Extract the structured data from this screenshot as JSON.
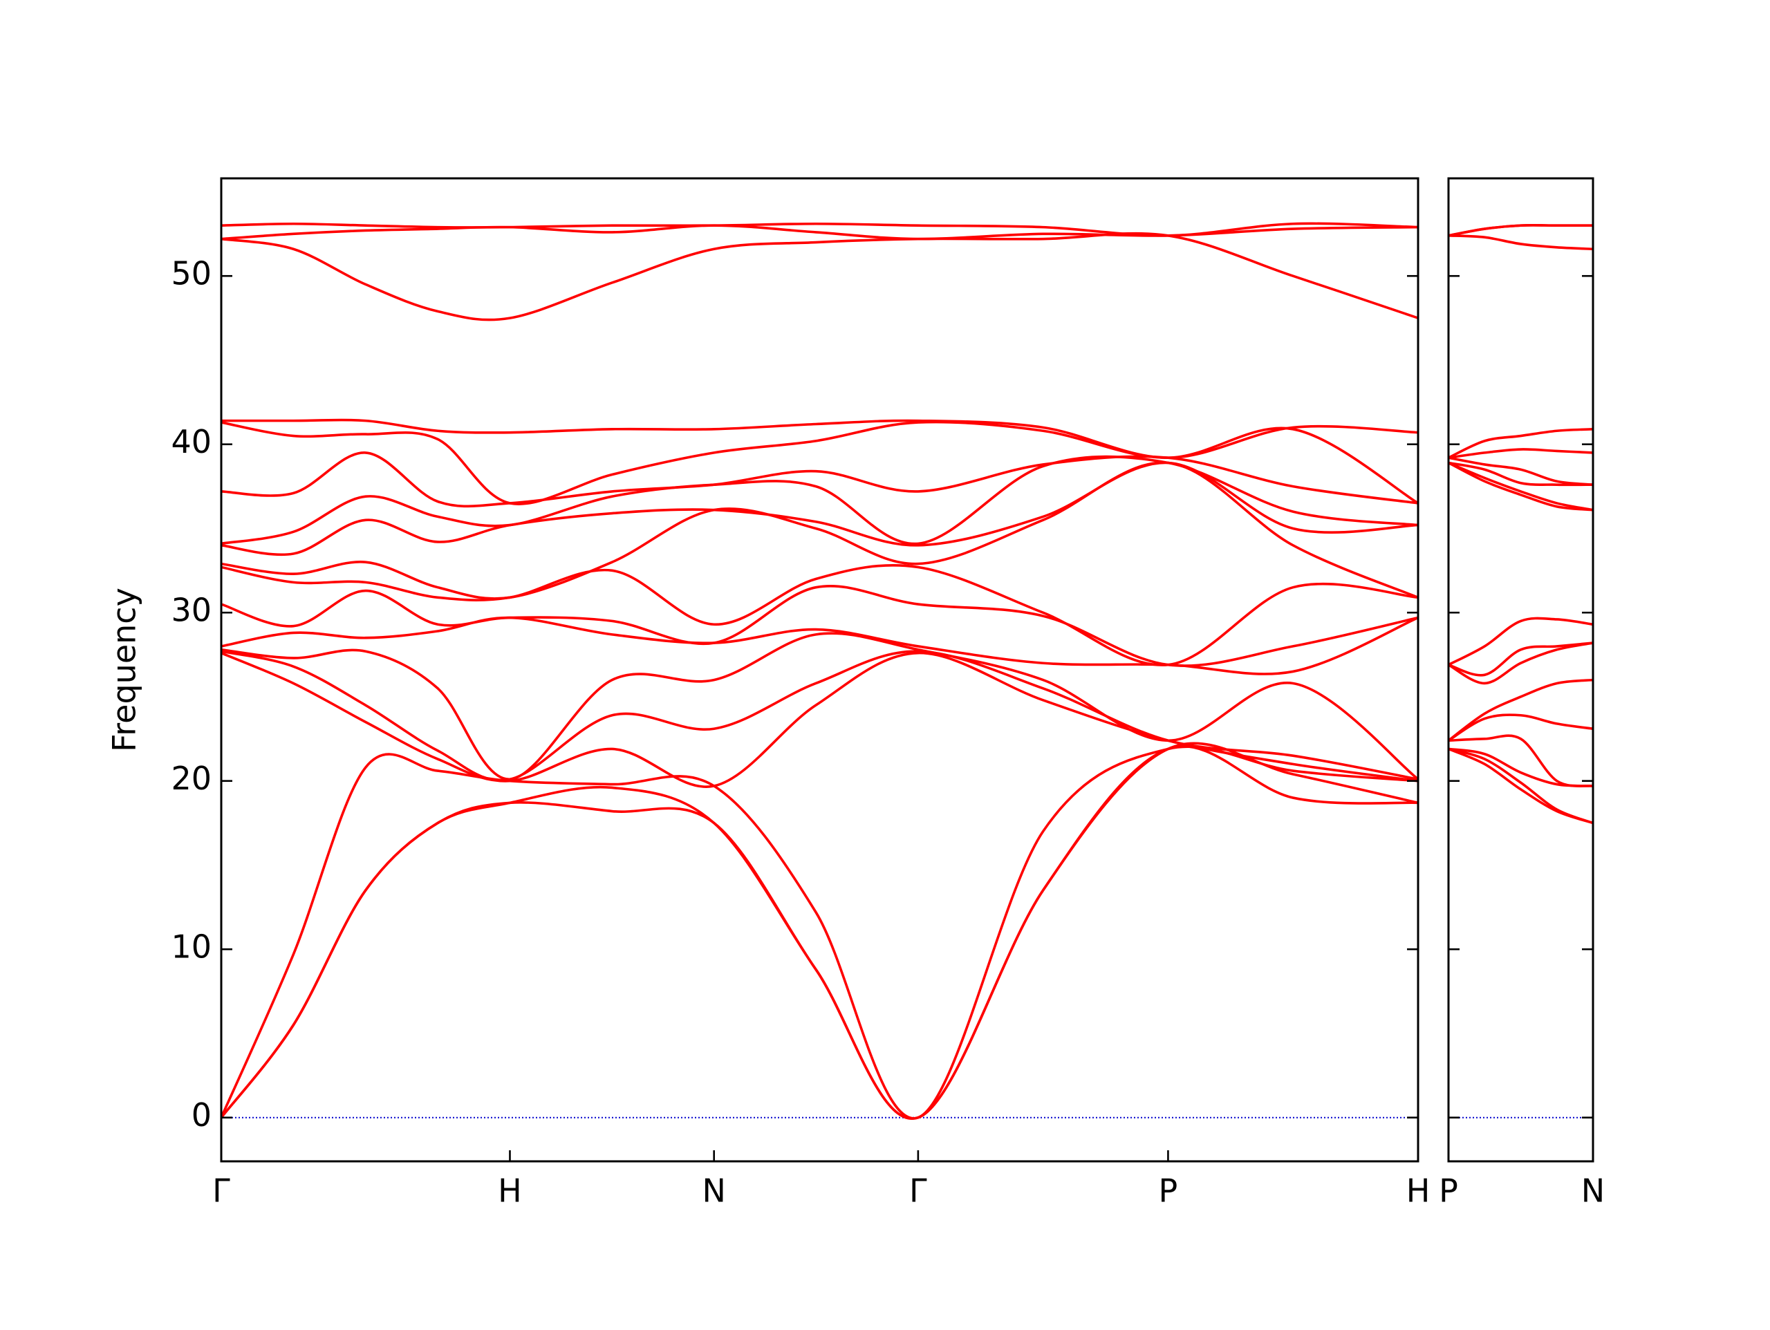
{
  "chart_data": [
    {
      "type": "line",
      "ylabel": "Frequency",
      "color": "#ff0000",
      "hline": 0,
      "hline_color": "#0000cc",
      "show_ytick_labels": true,
      "xlim": [
        0,
        4.1463
      ],
      "ylim": [
        -2.6,
        55.8
      ],
      "yticks": [
        0,
        10,
        20,
        30,
        40,
        50
      ],
      "xticks": [
        {
          "value": 0,
          "label": "Γ"
        },
        {
          "value": 1,
          "label": "H"
        },
        {
          "value": 1.7071,
          "label": "N"
        },
        {
          "value": 2.4142,
          "label": "Γ"
        },
        {
          "value": 3.2802,
          "label": "P"
        },
        {
          "value": 4.1463,
          "label": "H"
        }
      ],
      "x": [
        0,
        0.25,
        0.5,
        0.75,
        1,
        1.354,
        1.7071,
        2.06,
        2.4142,
        2.847,
        3.2802,
        3.713,
        4.1463
      ],
      "series": [
        {
          "values": [
            0,
            5.5,
            13.5,
            17.5,
            18.7,
            18.2,
            17.5,
            8.8,
            0,
            13.5,
            21.9,
            19.0,
            18.7
          ]
        },
        {
          "values": [
            0,
            5.5,
            13.5,
            17.5,
            18.7,
            19.6,
            17.5,
            8.8,
            0,
            13.5,
            21.9,
            20.4,
            18.7
          ]
        },
        {
          "values": [
            0,
            9.7,
            20.8,
            20.6,
            20.0,
            19.8,
            19.7,
            12.2,
            0,
            17.0,
            21.9,
            20.6,
            20.0
          ]
        },
        {
          "values": [
            27.6,
            25.8,
            23.5,
            21.3,
            20.0,
            21.9,
            19.7,
            24.5,
            27.6,
            24.8,
            22.4,
            21.0,
            20.0
          ]
        },
        {
          "values": [
            27.7,
            26.8,
            24.5,
            21.8,
            20.1,
            23.9,
            23.1,
            25.8,
            27.7,
            25.5,
            22.4,
            21.5,
            20.1
          ]
        },
        {
          "values": [
            27.8,
            27.3,
            27.7,
            25.5,
            20.1,
            26.0,
            26.0,
            28.7,
            27.8,
            26.0,
            22.4,
            25.8,
            20.1
          ]
        },
        {
          "values": [
            28.0,
            28.8,
            28.5,
            28.9,
            29.7,
            28.7,
            28.2,
            29.0,
            28.0,
            27.0,
            26.9,
            26.5,
            29.7
          ]
        },
        {
          "values": [
            30.5,
            29.2,
            31.3,
            29.3,
            29.7,
            29.5,
            28.2,
            31.5,
            30.5,
            29.8,
            26.9,
            28.0,
            29.7
          ]
        },
        {
          "values": [
            32.7,
            31.8,
            31.8,
            30.9,
            30.9,
            32.5,
            29.3,
            32.0,
            32.7,
            30.0,
            26.9,
            31.5,
            30.9
          ]
        },
        {
          "values": [
            32.9,
            32.3,
            33.0,
            31.5,
            30.9,
            33.0,
            36.1,
            35.0,
            32.9,
            35.5,
            38.9,
            34.0,
            30.9
          ]
        },
        {
          "values": [
            34.0,
            33.5,
            35.5,
            34.2,
            35.2,
            35.9,
            36.1,
            35.4,
            34.0,
            35.7,
            38.9,
            35.0,
            35.2
          ]
        },
        {
          "values": [
            34.1,
            34.8,
            36.9,
            35.7,
            35.2,
            36.9,
            37.6,
            37.5,
            34.1,
            38.7,
            38.9,
            36.0,
            35.2
          ]
        },
        {
          "values": [
            37.2,
            37.1,
            39.5,
            36.6,
            36.5,
            37.2,
            37.6,
            38.4,
            37.2,
            38.8,
            39.2,
            37.5,
            36.5
          ]
        },
        {
          "values": [
            41.3,
            40.5,
            40.6,
            40.3,
            36.5,
            38.2,
            39.5,
            40.2,
            41.3,
            40.8,
            39.2,
            40.9,
            36.5
          ]
        },
        {
          "values": [
            41.4,
            41.4,
            41.4,
            40.8,
            40.7,
            40.9,
            40.9,
            41.2,
            41.4,
            41.0,
            39.2,
            41.0,
            40.7
          ]
        },
        {
          "values": [
            52.2,
            51.6,
            49.5,
            47.9,
            47.5,
            49.6,
            51.6,
            52.0,
            52.2,
            52.2,
            52.4,
            50.0,
            47.5
          ]
        },
        {
          "values": [
            52.2,
            52.5,
            52.7,
            52.8,
            52.9,
            52.6,
            53.0,
            52.6,
            52.2,
            52.5,
            52.4,
            52.8,
            52.9
          ]
        },
        {
          "values": [
            53.0,
            53.1,
            53.0,
            52.9,
            52.9,
            53.0,
            53.0,
            53.1,
            53.0,
            52.9,
            52.4,
            53.1,
            52.9
          ]
        }
      ]
    },
    {
      "type": "line",
      "color": "#ff0000",
      "hline": 0,
      "hline_color": "#0000cc",
      "show_ytick_labels": false,
      "xlim": [
        0,
        0.5
      ],
      "ylim": [
        -2.6,
        55.8
      ],
      "yticks": [
        0,
        10,
        20,
        30,
        40,
        50
      ],
      "xticks": [
        {
          "value": 0,
          "label": "P"
        },
        {
          "value": 0.5,
          "label": "N"
        }
      ],
      "x": [
        0,
        0.125,
        0.25,
        0.375,
        0.5
      ],
      "series": [
        {
          "values": [
            21.9,
            21.0,
            19.5,
            18.2,
            17.5
          ]
        },
        {
          "values": [
            21.9,
            21.3,
            19.9,
            18.3,
            17.5
          ]
        },
        {
          "values": [
            21.9,
            21.6,
            20.5,
            19.8,
            19.7
          ]
        },
        {
          "values": [
            22.4,
            22.5,
            22.5,
            20.0,
            19.7
          ]
        },
        {
          "values": [
            22.4,
            23.7,
            23.9,
            23.4,
            23.1
          ]
        },
        {
          "values": [
            22.4,
            24.0,
            25.0,
            25.8,
            26.0
          ]
        },
        {
          "values": [
            26.9,
            25.8,
            27.0,
            27.8,
            28.2
          ]
        },
        {
          "values": [
            26.9,
            26.3,
            27.8,
            28.0,
            28.2
          ]
        },
        {
          "values": [
            26.9,
            28.0,
            29.5,
            29.6,
            29.3
          ]
        },
        {
          "values": [
            38.9,
            37.8,
            37.0,
            36.3,
            36.1
          ]
        },
        {
          "values": [
            38.9,
            38.0,
            37.2,
            36.5,
            36.1
          ]
        },
        {
          "values": [
            38.9,
            38.5,
            37.7,
            37.6,
            37.6
          ]
        },
        {
          "values": [
            39.2,
            38.8,
            38.5,
            37.8,
            37.6
          ]
        },
        {
          "values": [
            39.2,
            39.5,
            39.7,
            39.6,
            39.5
          ]
        },
        {
          "values": [
            39.2,
            40.2,
            40.5,
            40.8,
            40.9
          ]
        },
        {
          "values": [
            52.4,
            52.3,
            51.9,
            51.7,
            51.6
          ]
        },
        {
          "values": [
            52.4,
            52.8,
            53.0,
            53.0,
            53.0
          ]
        },
        {
          "values": [
            52.4,
            52.8,
            53.0,
            53.0,
            53.0
          ]
        }
      ]
    }
  ]
}
